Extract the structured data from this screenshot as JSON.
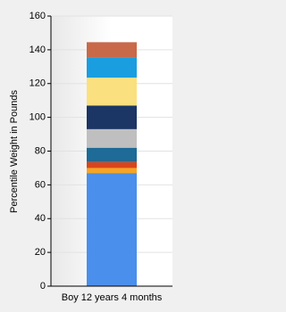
{
  "chart_data": {
    "type": "stacked_bar",
    "y_label": "Percentile Weight in Pounds",
    "categories": [
      "Boy 12 years 4 months"
    ],
    "series": [
      {
        "color": "#4a8fec",
        "values": [
          67
        ]
      },
      {
        "color": "#f5a623",
        "values": [
          3
        ]
      },
      {
        "color": "#d9451c",
        "values": [
          3.5
        ]
      },
      {
        "color": "#1d6b96",
        "values": [
          8.5
        ]
      },
      {
        "color": "#bfbfbf",
        "values": [
          11
        ]
      },
      {
        "color": "#1b3564",
        "values": [
          14
        ]
      },
      {
        "color": "#fbe07f",
        "values": [
          16.5
        ]
      },
      {
        "color": "#1a9ee0",
        "values": [
          12
        ]
      },
      {
        "color": "#c8694a",
        "values": [
          9
        ]
      }
    ],
    "ylim": [
      0,
      160
    ],
    "yticks": [
      0,
      20,
      40,
      60,
      80,
      100,
      120,
      140,
      160
    ],
    "grid": true
  }
}
